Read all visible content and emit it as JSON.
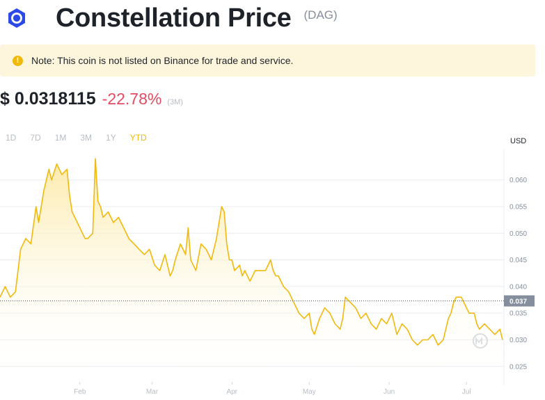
{
  "header": {
    "title": "Constellation Price",
    "symbol": "(DAG)",
    "logo_icon": "constellation-hexagon-icon"
  },
  "notice": {
    "icon": "exclamation-circle-icon",
    "text": "Note: This coin is not listed on Binance for trade and service."
  },
  "price": {
    "value": "$ 0.0318115",
    "change": "-22.78%",
    "period": "(3M)"
  },
  "ranges": [
    "1D",
    "7D",
    "1M",
    "3M",
    "1Y",
    "YTD"
  ],
  "active_range": "YTD",
  "colors": {
    "line": "#f0b90b",
    "fill_top": "#fde9a5",
    "change_negative": "#e24b61",
    "badge": "#848e9c"
  },
  "chart_data": {
    "type": "area",
    "currency_label": "USD",
    "y_ticks": [
      "0.060",
      "0.055",
      "0.050",
      "0.045",
      "0.040",
      "0.035",
      "0.030",
      "0.025"
    ],
    "y_tick_values": [
      0.06,
      0.055,
      0.05,
      0.045,
      0.04,
      0.035,
      0.03,
      0.025
    ],
    "ylim": [
      0.0221,
      0.0657
    ],
    "x_ticks": [
      "Feb",
      "Mar",
      "Apr",
      "May",
      "Jun",
      "Jul"
    ],
    "x_tick_days": [
      32,
      60,
      91,
      121,
      152,
      182
    ],
    "xlim": [
      1,
      196
    ],
    "reference_line": {
      "value": 0.0373,
      "label": "0.037"
    },
    "watermark_icon": "coinmarketcap-watermark-icon",
    "grid": true,
    "series": [
      {
        "x": [
          1,
          3,
          5,
          7,
          9,
          11,
          13,
          15,
          16,
          18,
          20,
          21,
          23,
          25,
          27,
          28,
          29,
          31,
          33,
          34,
          35,
          37,
          38,
          39,
          40,
          41,
          43,
          45,
          47,
          49,
          51,
          53,
          55,
          57,
          59,
          61,
          63,
          65,
          67,
          68,
          69,
          71,
          73,
          74,
          75,
          77,
          79,
          81,
          83,
          85,
          86,
          87,
          88,
          89,
          90,
          91,
          92,
          94,
          95,
          96,
          98,
          100,
          102,
          104,
          106,
          107,
          108,
          109,
          111,
          113,
          115,
          116,
          117,
          119,
          121,
          122,
          123,
          125,
          127,
          129,
          131,
          133,
          134,
          135,
          137,
          139,
          141,
          143,
          145,
          147,
          149,
          151,
          153,
          155,
          156,
          157,
          159,
          161,
          163,
          165,
          167,
          169,
          171,
          173,
          174,
          175,
          176,
          177,
          178,
          180,
          181,
          183,
          185,
          186,
          187,
          189,
          191,
          193,
          195,
          196
        ],
        "y": [
          0.038,
          0.04,
          0.038,
          0.039,
          0.047,
          0.049,
          0.048,
          0.055,
          0.052,
          0.058,
          0.062,
          0.06,
          0.063,
          0.061,
          0.062,
          0.057,
          0.054,
          0.052,
          0.05,
          0.049,
          0.049,
          0.05,
          0.064,
          0.056,
          0.055,
          0.053,
          0.054,
          0.052,
          0.053,
          0.051,
          0.049,
          0.048,
          0.047,
          0.046,
          0.047,
          0.044,
          0.043,
          0.046,
          0.042,
          0.043,
          0.045,
          0.048,
          0.046,
          0.051,
          0.045,
          0.043,
          0.048,
          0.047,
          0.045,
          0.049,
          0.052,
          0.055,
          0.054,
          0.048,
          0.045,
          0.045,
          0.043,
          0.044,
          0.042,
          0.043,
          0.041,
          0.043,
          0.043,
          0.043,
          0.045,
          0.043,
          0.042,
          0.042,
          0.04,
          0.039,
          0.037,
          0.036,
          0.035,
          0.034,
          0.035,
          0.032,
          0.031,
          0.034,
          0.036,
          0.035,
          0.033,
          0.032,
          0.034,
          0.038,
          0.037,
          0.036,
          0.034,
          0.035,
          0.033,
          0.032,
          0.034,
          0.033,
          0.035,
          0.031,
          0.032,
          0.033,
          0.032,
          0.03,
          0.029,
          0.03,
          0.03,
          0.031,
          0.029,
          0.03,
          0.032,
          0.034,
          0.035,
          0.037,
          0.038,
          0.038,
          0.037,
          0.035,
          0.035,
          0.033,
          0.032,
          0.033,
          0.032,
          0.031,
          0.032,
          0.03
        ]
      }
    ]
  }
}
